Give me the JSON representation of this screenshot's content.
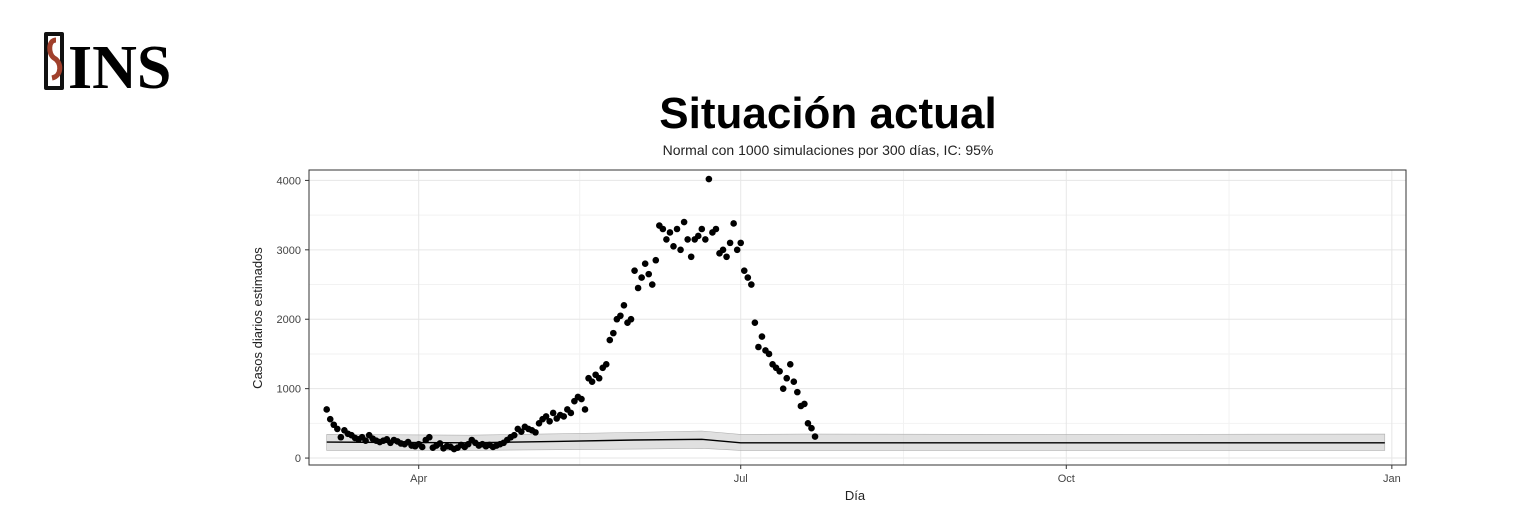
{
  "logo": {
    "text": "INS",
    "icon": "ins-logo-icon"
  },
  "chart_data": {
    "type": "scatter",
    "title": "Situación actual",
    "subtitle": "Normal con 1000 simulaciones por 300 días, IC: 95%",
    "ylabel": "Casos diarios estimados",
    "xlabel": "Día",
    "x_axis": {
      "start": "2020-03-01",
      "end": "2021-01-05",
      "ticks": [
        {
          "label": "Apr",
          "date": "2020-04-01"
        },
        {
          "label": "Jul",
          "date": "2020-07-01"
        },
        {
          "label": "Oct",
          "date": "2020-10-01"
        },
        {
          "label": "Jan",
          "date": "2021-01-01"
        }
      ]
    },
    "ylim": [
      -100,
      4150
    ],
    "y_ticks": [
      0,
      1000,
      2000,
      3000,
      4000
    ],
    "grid": true,
    "colors": {
      "points": "#000000",
      "band": "#cccccc",
      "line": "#000000",
      "grid": "#e6e6e6"
    },
    "series": [
      {
        "type": "scatter",
        "points": [
          [
            "2020-03-06",
            700
          ],
          [
            "2020-03-07",
            560
          ],
          [
            "2020-03-08",
            480
          ],
          [
            "2020-03-09",
            420
          ],
          [
            "2020-03-10",
            300
          ],
          [
            "2020-03-11",
            400
          ],
          [
            "2020-03-12",
            350
          ],
          [
            "2020-03-13",
            330
          ],
          [
            "2020-03-14",
            290
          ],
          [
            "2020-03-15",
            270
          ],
          [
            "2020-03-16",
            300
          ],
          [
            "2020-03-17",
            250
          ],
          [
            "2020-03-18",
            330
          ],
          [
            "2020-03-19",
            280
          ],
          [
            "2020-03-20",
            250
          ],
          [
            "2020-03-21",
            230
          ],
          [
            "2020-03-22",
            250
          ],
          [
            "2020-03-23",
            270
          ],
          [
            "2020-03-24",
            220
          ],
          [
            "2020-03-25",
            260
          ],
          [
            "2020-03-26",
            240
          ],
          [
            "2020-03-27",
            210
          ],
          [
            "2020-03-28",
            200
          ],
          [
            "2020-03-29",
            230
          ],
          [
            "2020-03-30",
            180
          ],
          [
            "2020-03-31",
            170
          ],
          [
            "2020-04-01",
            200
          ],
          [
            "2020-04-02",
            160
          ],
          [
            "2020-04-03",
            260
          ],
          [
            "2020-04-04",
            300
          ],
          [
            "2020-04-05",
            150
          ],
          [
            "2020-04-06",
            180
          ],
          [
            "2020-04-07",
            210
          ],
          [
            "2020-04-08",
            140
          ],
          [
            "2020-04-09",
            170
          ],
          [
            "2020-04-10",
            160
          ],
          [
            "2020-04-11",
            130
          ],
          [
            "2020-04-12",
            150
          ],
          [
            "2020-04-13",
            190
          ],
          [
            "2020-04-14",
            160
          ],
          [
            "2020-04-15",
            200
          ],
          [
            "2020-04-16",
            260
          ],
          [
            "2020-04-17",
            220
          ],
          [
            "2020-04-18",
            180
          ],
          [
            "2020-04-19",
            200
          ],
          [
            "2020-04-20",
            170
          ],
          [
            "2020-04-21",
            190
          ],
          [
            "2020-04-22",
            160
          ],
          [
            "2020-04-23",
            180
          ],
          [
            "2020-04-24",
            200
          ],
          [
            "2020-04-25",
            220
          ],
          [
            "2020-04-26",
            260
          ],
          [
            "2020-04-27",
            300
          ],
          [
            "2020-04-28",
            330
          ],
          [
            "2020-04-29",
            420
          ],
          [
            "2020-04-30",
            380
          ],
          [
            "2020-05-01",
            450
          ],
          [
            "2020-05-02",
            420
          ],
          [
            "2020-05-03",
            400
          ],
          [
            "2020-05-04",
            370
          ],
          [
            "2020-05-05",
            500
          ],
          [
            "2020-05-06",
            560
          ],
          [
            "2020-05-07",
            600
          ],
          [
            "2020-05-08",
            530
          ],
          [
            "2020-05-09",
            650
          ],
          [
            "2020-05-10",
            570
          ],
          [
            "2020-05-11",
            620
          ],
          [
            "2020-05-12",
            600
          ],
          [
            "2020-05-13",
            700
          ],
          [
            "2020-05-14",
            650
          ],
          [
            "2020-05-15",
            820
          ],
          [
            "2020-05-16",
            880
          ],
          [
            "2020-05-17",
            850
          ],
          [
            "2020-05-18",
            700
          ],
          [
            "2020-05-19",
            1150
          ],
          [
            "2020-05-20",
            1100
          ],
          [
            "2020-05-21",
            1200
          ],
          [
            "2020-05-22",
            1150
          ],
          [
            "2020-05-23",
            1300
          ],
          [
            "2020-05-24",
            1350
          ],
          [
            "2020-05-25",
            1700
          ],
          [
            "2020-05-26",
            1800
          ],
          [
            "2020-05-27",
            2000
          ],
          [
            "2020-05-28",
            2050
          ],
          [
            "2020-05-29",
            2200
          ],
          [
            "2020-05-30",
            1950
          ],
          [
            "2020-05-31",
            2000
          ],
          [
            "2020-06-01",
            2700
          ],
          [
            "2020-06-02",
            2450
          ],
          [
            "2020-06-03",
            2600
          ],
          [
            "2020-06-04",
            2800
          ],
          [
            "2020-06-05",
            2650
          ],
          [
            "2020-06-06",
            2500
          ],
          [
            "2020-06-07",
            2850
          ],
          [
            "2020-06-08",
            3350
          ],
          [
            "2020-06-09",
            3300
          ],
          [
            "2020-06-10",
            3150
          ],
          [
            "2020-06-11",
            3250
          ],
          [
            "2020-06-12",
            3050
          ],
          [
            "2020-06-13",
            3300
          ],
          [
            "2020-06-14",
            3000
          ],
          [
            "2020-06-15",
            3400
          ],
          [
            "2020-06-16",
            3150
          ],
          [
            "2020-06-17",
            2900
          ],
          [
            "2020-06-18",
            3150
          ],
          [
            "2020-06-19",
            3200
          ],
          [
            "2020-06-20",
            3300
          ],
          [
            "2020-06-21",
            3150
          ],
          [
            "2020-06-22",
            4020
          ],
          [
            "2020-06-23",
            3250
          ],
          [
            "2020-06-24",
            3300
          ],
          [
            "2020-06-25",
            2950
          ],
          [
            "2020-06-26",
            3000
          ],
          [
            "2020-06-27",
            2900
          ],
          [
            "2020-06-28",
            3100
          ],
          [
            "2020-06-29",
            3380
          ],
          [
            "2020-06-30",
            3000
          ],
          [
            "2020-07-01",
            3100
          ],
          [
            "2020-07-02",
            2700
          ],
          [
            "2020-07-03",
            2600
          ],
          [
            "2020-07-04",
            2500
          ],
          [
            "2020-07-05",
            1950
          ],
          [
            "2020-07-06",
            1600
          ],
          [
            "2020-07-07",
            1750
          ],
          [
            "2020-07-08",
            1550
          ],
          [
            "2020-07-09",
            1500
          ],
          [
            "2020-07-10",
            1350
          ],
          [
            "2020-07-11",
            1300
          ],
          [
            "2020-07-12",
            1250
          ],
          [
            "2020-07-13",
            1000
          ],
          [
            "2020-07-14",
            1150
          ],
          [
            "2020-07-15",
            1350
          ],
          [
            "2020-07-16",
            1100
          ],
          [
            "2020-07-17",
            950
          ],
          [
            "2020-07-18",
            750
          ],
          [
            "2020-07-19",
            780
          ],
          [
            "2020-07-20",
            500
          ],
          [
            "2020-07-21",
            430
          ],
          [
            "2020-07-22",
            310
          ]
        ]
      },
      {
        "type": "line",
        "points": [
          [
            "2020-03-06",
            230
          ],
          [
            "2020-04-15",
            220
          ],
          [
            "2020-05-10",
            240
          ],
          [
            "2020-06-01",
            260
          ],
          [
            "2020-06-20",
            270
          ],
          [
            "2020-07-01",
            220
          ],
          [
            "2020-07-20",
            220
          ],
          [
            "2020-10-01",
            220
          ],
          [
            "2020-12-30",
            220
          ]
        ]
      },
      {
        "type": "band",
        "upper": [
          [
            "2020-03-06",
            340
          ],
          [
            "2020-04-15",
            330
          ],
          [
            "2020-05-10",
            350
          ],
          [
            "2020-06-01",
            370
          ],
          [
            "2020-06-20",
            390
          ],
          [
            "2020-07-01",
            340
          ],
          [
            "2020-07-20",
            345
          ],
          [
            "2020-10-01",
            340
          ],
          [
            "2020-12-30",
            345
          ]
        ],
        "lower": [
          [
            "2020-03-06",
            110
          ],
          [
            "2020-04-15",
            110
          ],
          [
            "2020-05-10",
            120
          ],
          [
            "2020-06-01",
            130
          ],
          [
            "2020-06-20",
            140
          ],
          [
            "2020-07-01",
            110
          ],
          [
            "2020-07-20",
            110
          ],
          [
            "2020-10-01",
            110
          ],
          [
            "2020-12-30",
            110
          ]
        ]
      }
    ]
  }
}
